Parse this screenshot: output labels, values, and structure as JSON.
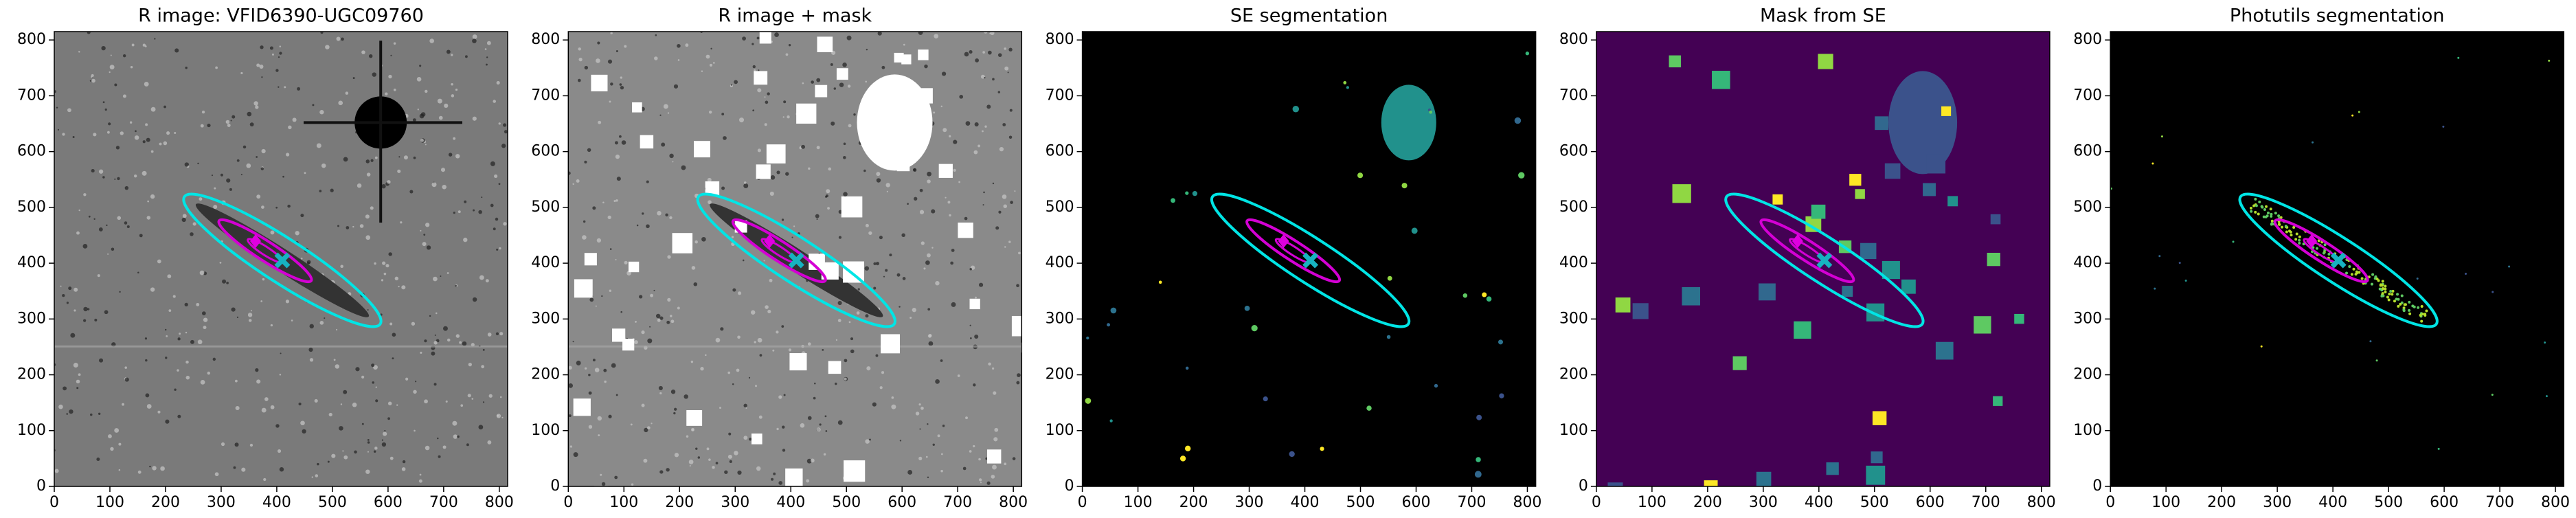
{
  "chart_data": [
    {
      "type": "image",
      "title": "R image: VFID6390-UGC09760",
      "background": "#7a7a7a",
      "xlim": [
        0,
        815
      ],
      "ylim": [
        0,
        815
      ],
      "xticks": [
        0,
        100,
        200,
        300,
        400,
        500,
        600,
        700,
        800
      ],
      "yticks": [
        0,
        100,
        200,
        300,
        400,
        500,
        600,
        700,
        800
      ]
    },
    {
      "type": "image",
      "title": "R image + mask",
      "background": "#8a8a8a",
      "xlim": [
        0,
        815
      ],
      "ylim": [
        0,
        815
      ],
      "xticks": [
        0,
        100,
        200,
        300,
        400,
        500,
        600,
        700,
        800
      ],
      "yticks": [
        0,
        100,
        200,
        300,
        400,
        500,
        600,
        700,
        800
      ]
    },
    {
      "type": "image",
      "title": "SE segmentation",
      "background": "#000000",
      "xlim": [
        0,
        815
      ],
      "ylim": [
        0,
        815
      ],
      "xticks": [
        0,
        100,
        200,
        300,
        400,
        500,
        600,
        700,
        800
      ],
      "yticks": [
        0,
        100,
        200,
        300,
        400,
        500,
        600,
        700,
        800
      ]
    },
    {
      "type": "image",
      "title": "Mask from SE",
      "background": "#440154",
      "xlim": [
        0,
        815
      ],
      "ylim": [
        0,
        815
      ],
      "xticks": [
        0,
        100,
        200,
        300,
        400,
        500,
        600,
        700,
        800
      ],
      "yticks": [
        0,
        100,
        200,
        300,
        400,
        500,
        600,
        700,
        800
      ]
    },
    {
      "type": "image",
      "title": "Photutils segmentation",
      "background": "#000000",
      "xlim": [
        0,
        815
      ],
      "ylim": [
        0,
        815
      ],
      "xticks": [
        0,
        100,
        200,
        300,
        400,
        500,
        600,
        700,
        800
      ],
      "yticks": [
        0,
        100,
        200,
        300,
        400,
        500,
        600,
        700,
        800
      ]
    }
  ]
}
